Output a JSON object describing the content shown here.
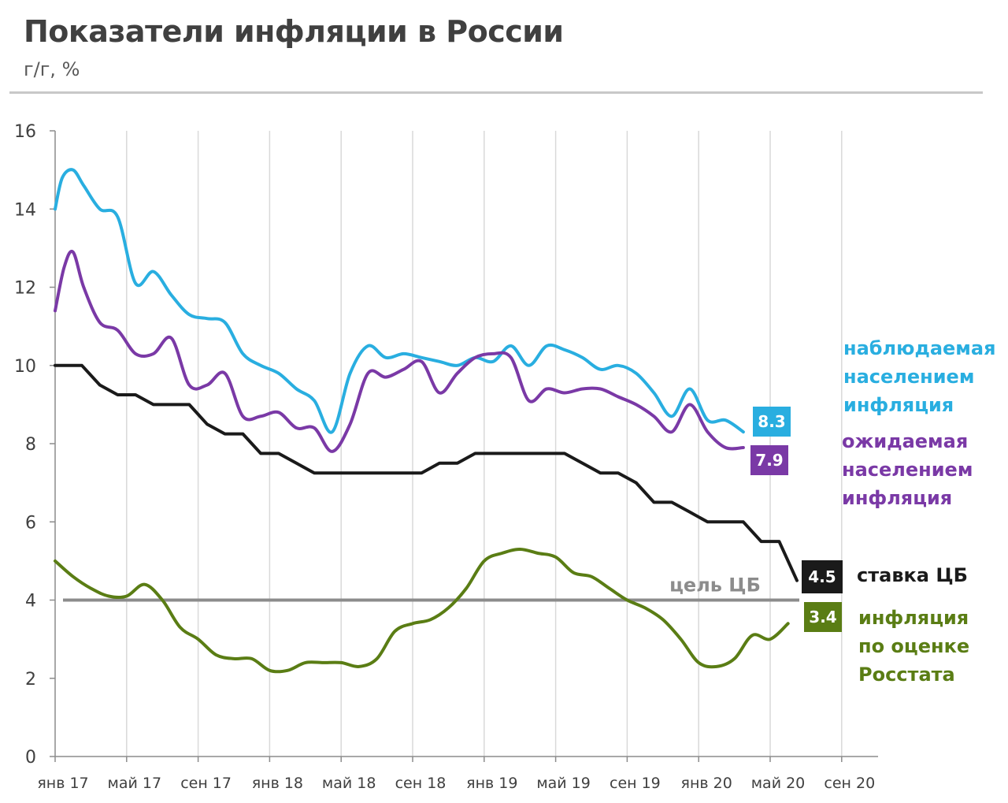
{
  "header": {
    "title": "Показатели инфляции в России",
    "subtitle": "г/г, %"
  },
  "chart_data": {
    "type": "line",
    "title": "Показатели инфляции в России",
    "ylabel": "г/г, %",
    "ylim": [
      0,
      16
    ],
    "yticks": [
      "0",
      "2",
      "4",
      "6",
      "8",
      "10",
      "12",
      "14",
      "16"
    ],
    "x_range_months": [
      0,
      44
    ],
    "xticks": [
      {
        "label": "янв 17",
        "month": 0
      },
      {
        "label": "май 17",
        "month": 4
      },
      {
        "label": "сен 17",
        "month": 8
      },
      {
        "label": "янв 18",
        "month": 12
      },
      {
        "label": "май 18",
        "month": 16
      },
      {
        "label": "сен 18",
        "month": 20
      },
      {
        "label": "янв 19",
        "month": 24
      },
      {
        "label": "май 19",
        "month": 28
      },
      {
        "label": "сен 19",
        "month": 32
      },
      {
        "label": "янв 20",
        "month": 36
      },
      {
        "label": "май 20",
        "month": 40
      },
      {
        "label": "сен 20",
        "month": 44
      }
    ],
    "grid": "vertical",
    "target": {
      "label": "цель ЦБ",
      "value": 4,
      "color": "#8c8c8c"
    },
    "series": [
      {
        "key": "observed",
        "name": "наблюдаемая населением инфляция",
        "name_lines": [
          "наблюдаемая",
          "населением",
          "инфляция"
        ],
        "color": "#29aee0",
        "end_label": "8.3",
        "points": [
          [
            0,
            14.0
          ],
          [
            0.4,
            14.8
          ],
          [
            1,
            15.0
          ],
          [
            1.6,
            14.6
          ],
          [
            2.5,
            14.0
          ],
          [
            3.5,
            13.8
          ],
          [
            4.5,
            12.1
          ],
          [
            5.5,
            12.4
          ],
          [
            6.5,
            11.8
          ],
          [
            7.5,
            11.3
          ],
          [
            8.5,
            11.2
          ],
          [
            9.5,
            11.1
          ],
          [
            10.5,
            10.3
          ],
          [
            11.5,
            10.0
          ],
          [
            12.5,
            9.8
          ],
          [
            13.5,
            9.4
          ],
          [
            14.5,
            9.1
          ],
          [
            15.5,
            8.3
          ],
          [
            16.5,
            9.8
          ],
          [
            17.5,
            10.5
          ],
          [
            18.5,
            10.2
          ],
          [
            19.5,
            10.3
          ],
          [
            20.5,
            10.2
          ],
          [
            21.5,
            10.1
          ],
          [
            22.5,
            10.0
          ],
          [
            23.5,
            10.2
          ],
          [
            24.5,
            10.1
          ],
          [
            25.5,
            10.5
          ],
          [
            26.5,
            10.0
          ],
          [
            27.5,
            10.5
          ],
          [
            28.5,
            10.4
          ],
          [
            29.5,
            10.2
          ],
          [
            30.5,
            9.9
          ],
          [
            31.5,
            10.0
          ],
          [
            32.5,
            9.8
          ],
          [
            33.5,
            9.3
          ],
          [
            34.5,
            8.7
          ],
          [
            35.5,
            9.4
          ],
          [
            36.5,
            8.6
          ],
          [
            37.5,
            8.6
          ],
          [
            38.5,
            8.3
          ]
        ]
      },
      {
        "key": "expected",
        "name": "ожидаемая населением инфляция",
        "name_lines": [
          "ожидаемая",
          "населением",
          "инфляция"
        ],
        "color": "#7a39a6",
        "end_label": "7.9",
        "points": [
          [
            0,
            11.4
          ],
          [
            0.5,
            12.5
          ],
          [
            1,
            12.9
          ],
          [
            1.6,
            12.0
          ],
          [
            2.5,
            11.1
          ],
          [
            3.5,
            10.9
          ],
          [
            4.5,
            10.3
          ],
          [
            5.5,
            10.3
          ],
          [
            6.5,
            10.7
          ],
          [
            7.5,
            9.5
          ],
          [
            8.5,
            9.5
          ],
          [
            9.5,
            9.8
          ],
          [
            10.5,
            8.7
          ],
          [
            11.5,
            8.7
          ],
          [
            12.5,
            8.8
          ],
          [
            13.5,
            8.4
          ],
          [
            14.5,
            8.4
          ],
          [
            15.5,
            7.8
          ],
          [
            16.5,
            8.5
          ],
          [
            17.5,
            9.8
          ],
          [
            18.5,
            9.7
          ],
          [
            19.5,
            9.9
          ],
          [
            20.5,
            10.1
          ],
          [
            21.5,
            9.3
          ],
          [
            22.5,
            9.8
          ],
          [
            23.5,
            10.2
          ],
          [
            24.5,
            10.3
          ],
          [
            25.5,
            10.2
          ],
          [
            26.5,
            9.1
          ],
          [
            27.5,
            9.4
          ],
          [
            28.5,
            9.3
          ],
          [
            29.5,
            9.4
          ],
          [
            30.5,
            9.4
          ],
          [
            31.5,
            9.2
          ],
          [
            32.5,
            9.0
          ],
          [
            33.5,
            8.7
          ],
          [
            34.5,
            8.3
          ],
          [
            35.5,
            9.0
          ],
          [
            36.5,
            8.3
          ],
          [
            37.5,
            7.9
          ],
          [
            38.5,
            7.9
          ]
        ]
      },
      {
        "key": "key_rate",
        "name": "ставка ЦБ",
        "name_lines": [
          "ставка ЦБ"
        ],
        "color": "#1a1a1a",
        "end_label": "4.5",
        "points": [
          [
            0,
            10.0
          ],
          [
            1.5,
            10.0
          ],
          [
            2.5,
            9.5
          ],
          [
            3.5,
            9.25
          ],
          [
            4.5,
            9.25
          ],
          [
            5.5,
            9.0
          ],
          [
            7.5,
            9.0
          ],
          [
            8.5,
            8.5
          ],
          [
            9.5,
            8.25
          ],
          [
            10.5,
            8.25
          ],
          [
            11.5,
            7.75
          ],
          [
            12.5,
            7.75
          ],
          [
            13.5,
            7.5
          ],
          [
            14.5,
            7.25
          ],
          [
            20.5,
            7.25
          ],
          [
            21.5,
            7.5
          ],
          [
            22.5,
            7.5
          ],
          [
            23.5,
            7.75
          ],
          [
            28.5,
            7.75
          ],
          [
            29.5,
            7.5
          ],
          [
            30.5,
            7.25
          ],
          [
            31.5,
            7.25
          ],
          [
            32.5,
            7.0
          ],
          [
            33.5,
            6.5
          ],
          [
            34.5,
            6.5
          ],
          [
            35.5,
            6.25
          ],
          [
            36.5,
            6.0
          ],
          [
            38.5,
            6.0
          ],
          [
            39.5,
            5.5
          ],
          [
            40.5,
            5.5
          ],
          [
            41.5,
            4.5
          ]
        ]
      },
      {
        "key": "rosstat",
        "name": "инфляция по оценке Росстата",
        "name_lines": [
          "инфляция",
          "по оценке",
          "Росстата"
        ],
        "color": "#5a7d14",
        "end_label": "3.4",
        "points": [
          [
            0,
            5.0
          ],
          [
            1,
            4.6
          ],
          [
            2,
            4.3
          ],
          [
            3,
            4.1
          ],
          [
            4,
            4.1
          ],
          [
            5,
            4.4
          ],
          [
            6,
            4.0
          ],
          [
            7,
            3.3
          ],
          [
            8,
            3.0
          ],
          [
            9,
            2.6
          ],
          [
            10,
            2.5
          ],
          [
            11,
            2.5
          ],
          [
            12,
            2.2
          ],
          [
            13,
            2.2
          ],
          [
            14,
            2.4
          ],
          [
            15,
            2.4
          ],
          [
            16,
            2.4
          ],
          [
            17,
            2.3
          ],
          [
            18,
            2.5
          ],
          [
            19,
            3.2
          ],
          [
            20,
            3.4
          ],
          [
            21,
            3.5
          ],
          [
            22,
            3.8
          ],
          [
            23,
            4.3
          ],
          [
            24,
            5.0
          ],
          [
            25,
            5.2
          ],
          [
            26,
            5.3
          ],
          [
            27,
            5.2
          ],
          [
            28,
            5.1
          ],
          [
            29,
            4.7
          ],
          [
            30,
            4.6
          ],
          [
            31,
            4.3
          ],
          [
            32,
            4.0
          ],
          [
            33,
            3.8
          ],
          [
            34,
            3.5
          ],
          [
            35,
            3.0
          ],
          [
            36,
            2.4
          ],
          [
            37,
            2.3
          ],
          [
            38,
            2.5
          ],
          [
            39,
            3.1
          ],
          [
            40,
            3.0
          ],
          [
            41,
            3.4
          ]
        ]
      }
    ]
  }
}
